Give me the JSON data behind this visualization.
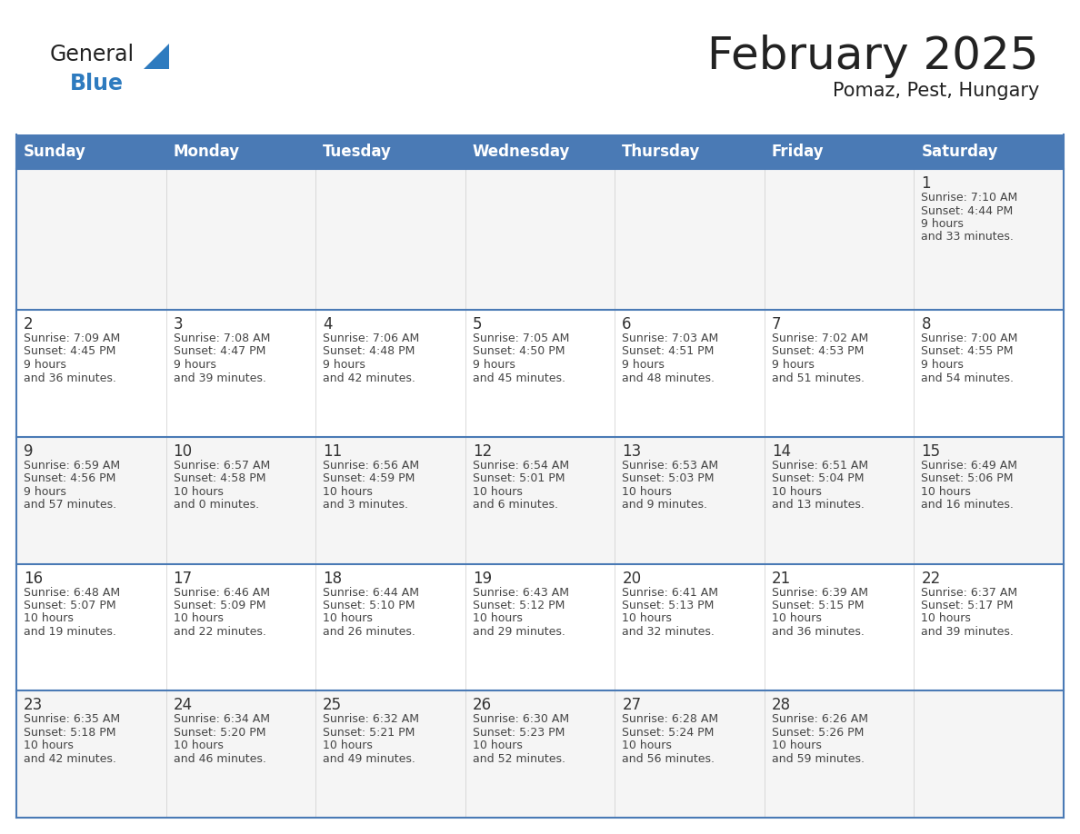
{
  "title": "February 2025",
  "subtitle": "Pomaz, Pest, Hungary",
  "days_of_week": [
    "Sunday",
    "Monday",
    "Tuesday",
    "Wednesday",
    "Thursday",
    "Friday",
    "Saturday"
  ],
  "header_bg": "#4a7ab5",
  "header_text": "#ffffff",
  "cell_bg_odd": "#f5f5f5",
  "cell_bg_even": "#ffffff",
  "row_border_color": "#4a7ab5",
  "col_border_color": "#cccccc",
  "text_color": "#444444",
  "day_num_color": "#333333",
  "calendar_data": [
    [
      {
        "day": null,
        "sunrise": null,
        "sunset": null,
        "daylight": null
      },
      {
        "day": null,
        "sunrise": null,
        "sunset": null,
        "daylight": null
      },
      {
        "day": null,
        "sunrise": null,
        "sunset": null,
        "daylight": null
      },
      {
        "day": null,
        "sunrise": null,
        "sunset": null,
        "daylight": null
      },
      {
        "day": null,
        "sunrise": null,
        "sunset": null,
        "daylight": null
      },
      {
        "day": null,
        "sunrise": null,
        "sunset": null,
        "daylight": null
      },
      {
        "day": 1,
        "sunrise": "7:10 AM",
        "sunset": "4:44 PM",
        "daylight": "9 hours and 33 minutes."
      }
    ],
    [
      {
        "day": 2,
        "sunrise": "7:09 AM",
        "sunset": "4:45 PM",
        "daylight": "9 hours and 36 minutes."
      },
      {
        "day": 3,
        "sunrise": "7:08 AM",
        "sunset": "4:47 PM",
        "daylight": "9 hours and 39 minutes."
      },
      {
        "day": 4,
        "sunrise": "7:06 AM",
        "sunset": "4:48 PM",
        "daylight": "9 hours and 42 minutes."
      },
      {
        "day": 5,
        "sunrise": "7:05 AM",
        "sunset": "4:50 PM",
        "daylight": "9 hours and 45 minutes."
      },
      {
        "day": 6,
        "sunrise": "7:03 AM",
        "sunset": "4:51 PM",
        "daylight": "9 hours and 48 minutes."
      },
      {
        "day": 7,
        "sunrise": "7:02 AM",
        "sunset": "4:53 PM",
        "daylight": "9 hours and 51 minutes."
      },
      {
        "day": 8,
        "sunrise": "7:00 AM",
        "sunset": "4:55 PM",
        "daylight": "9 hours and 54 minutes."
      }
    ],
    [
      {
        "day": 9,
        "sunrise": "6:59 AM",
        "sunset": "4:56 PM",
        "daylight": "9 hours and 57 minutes."
      },
      {
        "day": 10,
        "sunrise": "6:57 AM",
        "sunset": "4:58 PM",
        "daylight": "10 hours and 0 minutes."
      },
      {
        "day": 11,
        "sunrise": "6:56 AM",
        "sunset": "4:59 PM",
        "daylight": "10 hours and 3 minutes."
      },
      {
        "day": 12,
        "sunrise": "6:54 AM",
        "sunset": "5:01 PM",
        "daylight": "10 hours and 6 minutes."
      },
      {
        "day": 13,
        "sunrise": "6:53 AM",
        "sunset": "5:03 PM",
        "daylight": "10 hours and 9 minutes."
      },
      {
        "day": 14,
        "sunrise": "6:51 AM",
        "sunset": "5:04 PM",
        "daylight": "10 hours and 13 minutes."
      },
      {
        "day": 15,
        "sunrise": "6:49 AM",
        "sunset": "5:06 PM",
        "daylight": "10 hours and 16 minutes."
      }
    ],
    [
      {
        "day": 16,
        "sunrise": "6:48 AM",
        "sunset": "5:07 PM",
        "daylight": "10 hours and 19 minutes."
      },
      {
        "day": 17,
        "sunrise": "6:46 AM",
        "sunset": "5:09 PM",
        "daylight": "10 hours and 22 minutes."
      },
      {
        "day": 18,
        "sunrise": "6:44 AM",
        "sunset": "5:10 PM",
        "daylight": "10 hours and 26 minutes."
      },
      {
        "day": 19,
        "sunrise": "6:43 AM",
        "sunset": "5:12 PM",
        "daylight": "10 hours and 29 minutes."
      },
      {
        "day": 20,
        "sunrise": "6:41 AM",
        "sunset": "5:13 PM",
        "daylight": "10 hours and 32 minutes."
      },
      {
        "day": 21,
        "sunrise": "6:39 AM",
        "sunset": "5:15 PM",
        "daylight": "10 hours and 36 minutes."
      },
      {
        "day": 22,
        "sunrise": "6:37 AM",
        "sunset": "5:17 PM",
        "daylight": "10 hours and 39 minutes."
      }
    ],
    [
      {
        "day": 23,
        "sunrise": "6:35 AM",
        "sunset": "5:18 PM",
        "daylight": "10 hours and 42 minutes."
      },
      {
        "day": 24,
        "sunrise": "6:34 AM",
        "sunset": "5:20 PM",
        "daylight": "10 hours and 46 minutes."
      },
      {
        "day": 25,
        "sunrise": "6:32 AM",
        "sunset": "5:21 PM",
        "daylight": "10 hours and 49 minutes."
      },
      {
        "day": 26,
        "sunrise": "6:30 AM",
        "sunset": "5:23 PM",
        "daylight": "10 hours and 52 minutes."
      },
      {
        "day": 27,
        "sunrise": "6:28 AM",
        "sunset": "5:24 PM",
        "daylight": "10 hours and 56 minutes."
      },
      {
        "day": 28,
        "sunrise": "6:26 AM",
        "sunset": "5:26 PM",
        "daylight": "10 hours and 59 minutes."
      },
      {
        "day": null,
        "sunrise": null,
        "sunset": null,
        "daylight": null
      }
    ]
  ],
  "logo_general_color": "#222222",
  "logo_blue_color": "#2e7bbf",
  "title_fontsize": 36,
  "subtitle_fontsize": 15,
  "header_fontsize": 12,
  "day_num_fontsize": 12,
  "cell_text_fontsize": 9
}
